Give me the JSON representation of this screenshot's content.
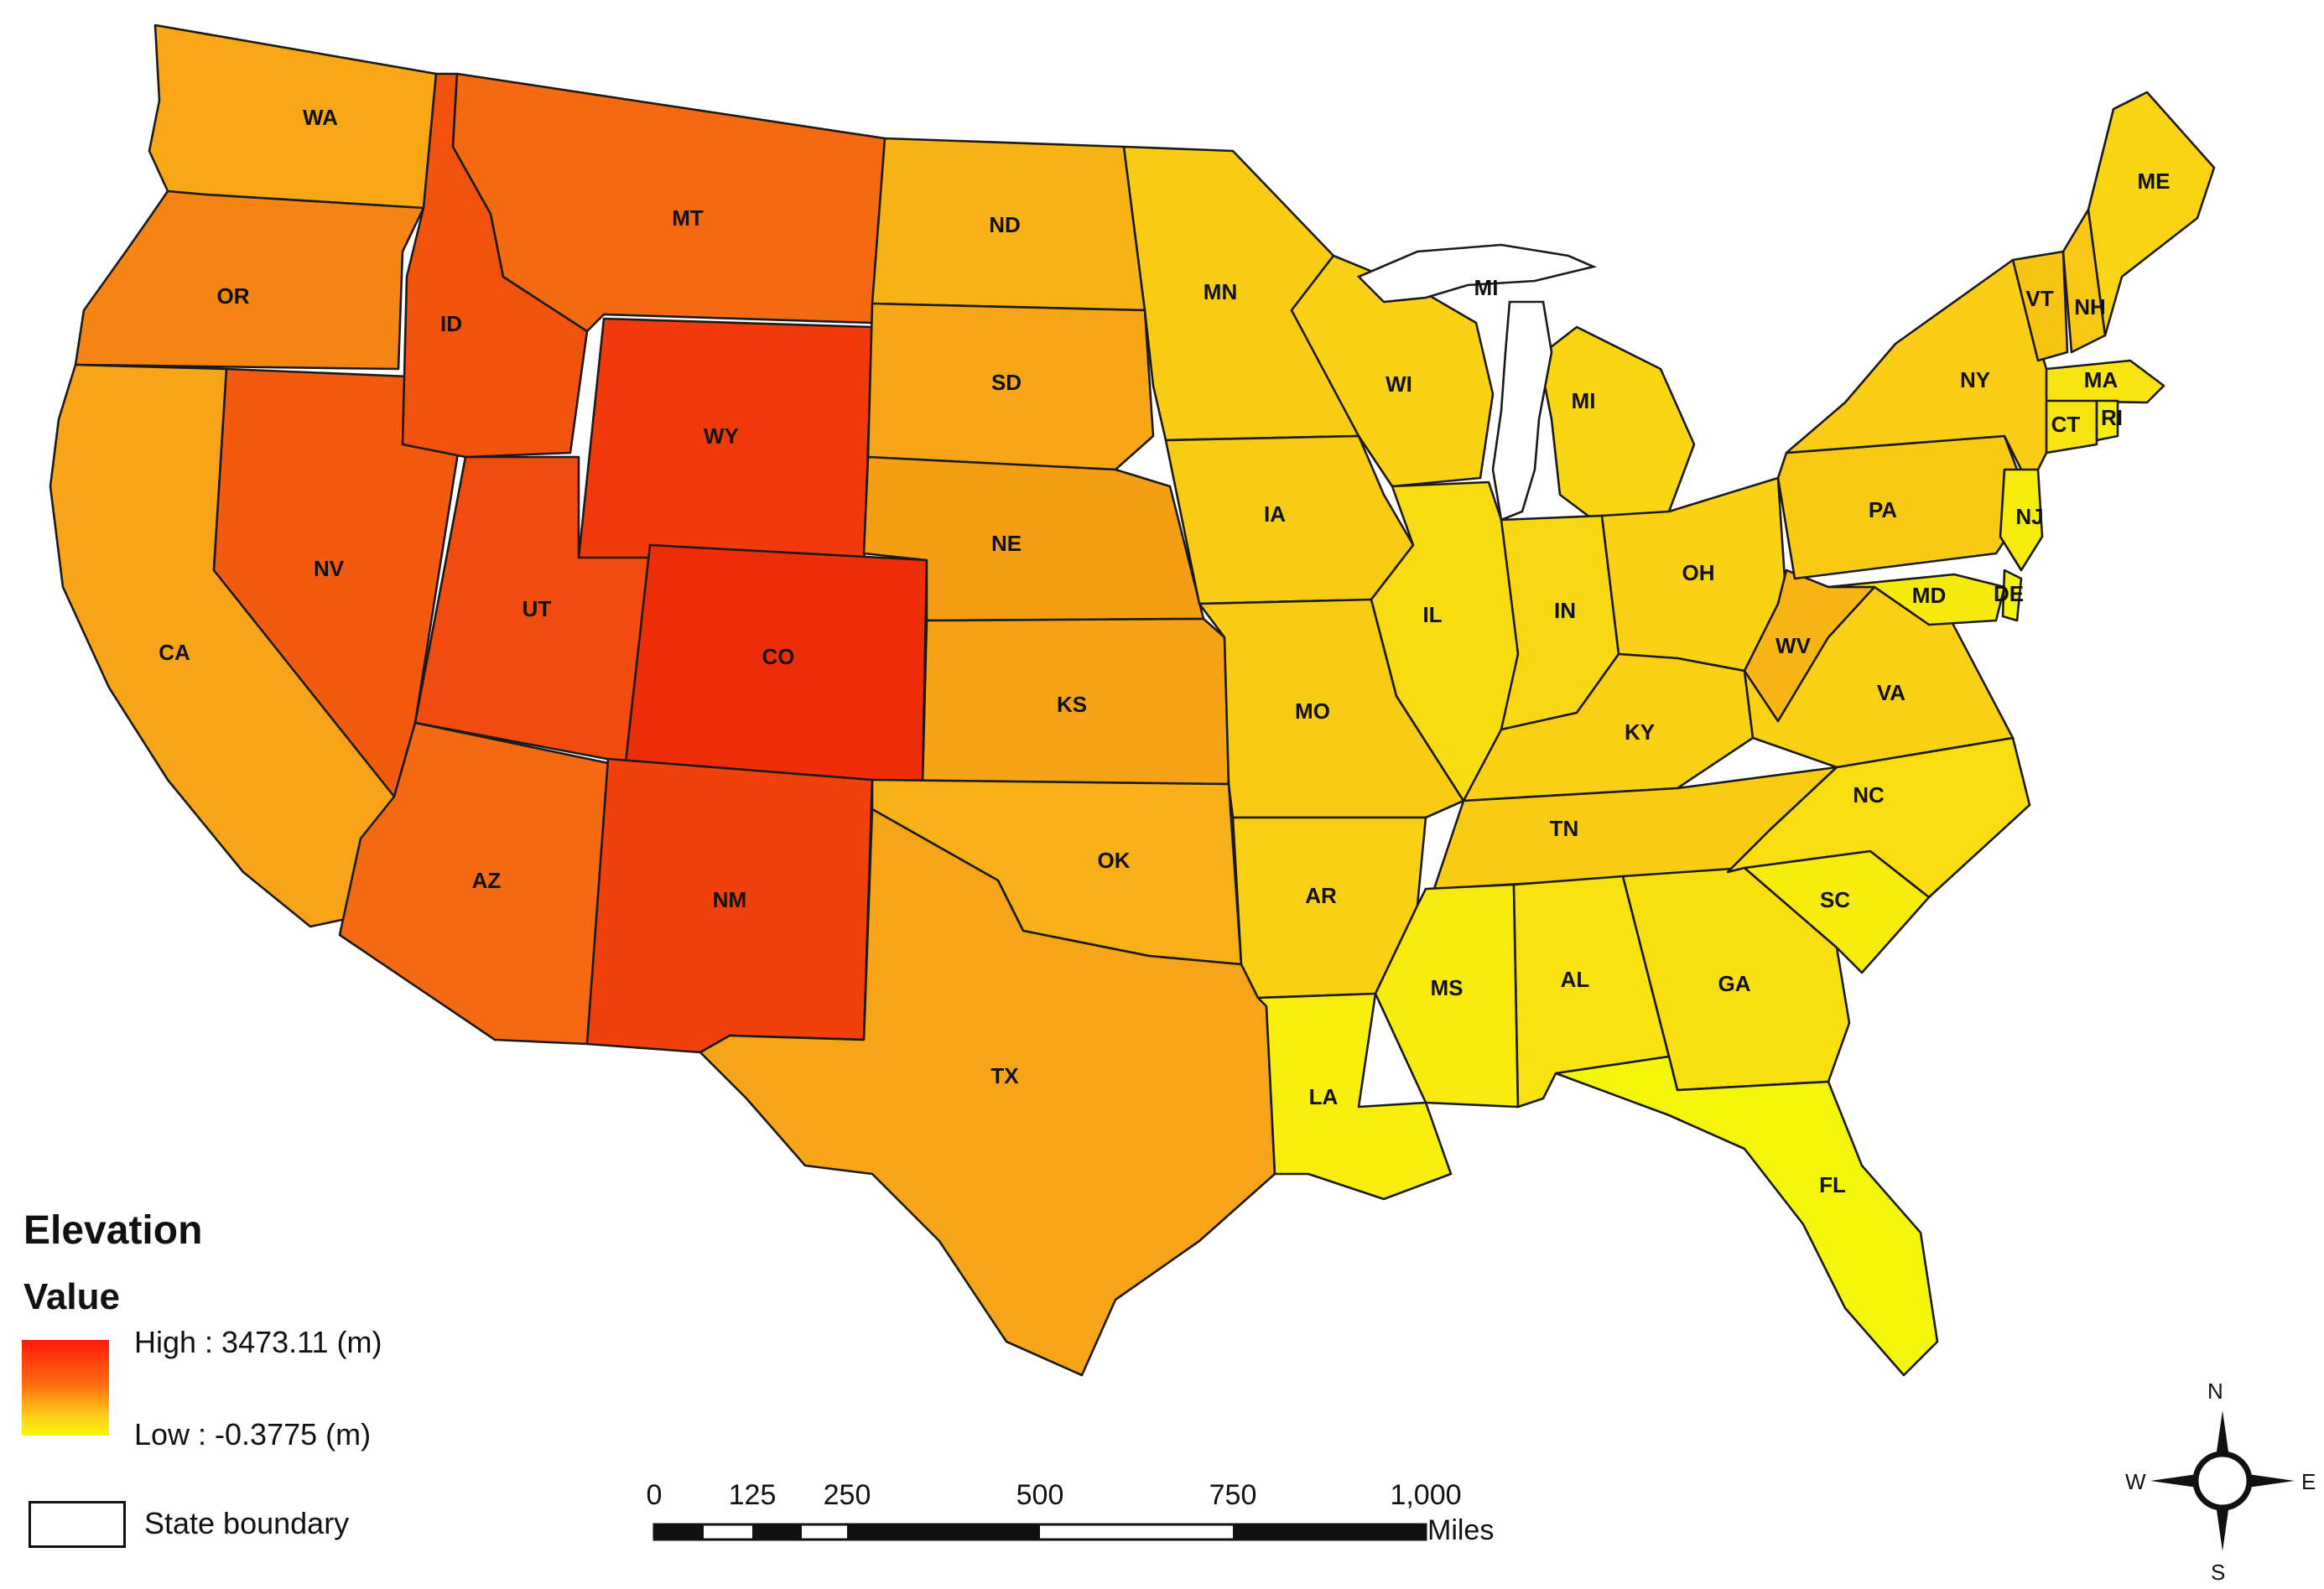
{
  "map": {
    "title": "Elevation",
    "legend": {
      "value_heading": "Value",
      "high_label": "High : 3473.11 (m)",
      "low_label": "Low : -0.3775 (m)",
      "high_color": "#ff1a0a",
      "low_color": "#f6f40a",
      "boundary_label": "State boundary"
    },
    "scale_bar": {
      "ticks": [
        "0",
        "125",
        "250",
        "500",
        "750",
        "1,000"
      ],
      "unit": "Miles"
    },
    "north_arrow": {
      "n": "N",
      "s": "S",
      "e": "E",
      "w": "W"
    },
    "states": [
      {
        "abbr": "WA",
        "color": "#f7a814"
      },
      {
        "abbr": "OR",
        "color": "#f48414"
      },
      {
        "abbr": "CA",
        "color": "#f7a418"
      },
      {
        "abbr": "NV",
        "color": "#f25a10"
      },
      {
        "abbr": "ID",
        "color": "#f1520e"
      },
      {
        "abbr": "MT",
        "color": "#f36a10"
      },
      {
        "abbr": "WY",
        "color": "#f03a0c"
      },
      {
        "abbr": "UT",
        "color": "#f14c0e"
      },
      {
        "abbr": "CO",
        "color": "#ee2c0a"
      },
      {
        "abbr": "AZ",
        "color": "#f36a12"
      },
      {
        "abbr": "NM",
        "color": "#f0400c"
      },
      {
        "abbr": "ND",
        "color": "#f7b216"
      },
      {
        "abbr": "SD",
        "color": "#f6a616"
      },
      {
        "abbr": "NE",
        "color": "#f59e14"
      },
      {
        "abbr": "KS",
        "color": "#f6a416"
      },
      {
        "abbr": "OK",
        "color": "#f7b018"
      },
      {
        "abbr": "TX",
        "color": "#f6a418"
      },
      {
        "abbr": "MN",
        "color": "#f9cc14"
      },
      {
        "abbr": "IA",
        "color": "#f9cc14"
      },
      {
        "abbr": "MO",
        "color": "#f9cc14"
      },
      {
        "abbr": "AR",
        "color": "#f9d014"
      },
      {
        "abbr": "LA",
        "color": "#f7ee0c"
      },
      {
        "abbr": "WI",
        "color": "#f9d214"
      },
      {
        "abbr": "MI",
        "color": "#f9d612"
      },
      {
        "abbr": "IL",
        "color": "#f8dc12"
      },
      {
        "abbr": "IN",
        "color": "#f8d812"
      },
      {
        "abbr": "OH",
        "color": "#f9d214"
      },
      {
        "abbr": "KY",
        "color": "#f9d014"
      },
      {
        "abbr": "TN",
        "color": "#f9cc14"
      },
      {
        "abbr": "MS",
        "color": "#f7ea0c"
      },
      {
        "abbr": "AL",
        "color": "#f8e210"
      },
      {
        "abbr": "GA",
        "color": "#f8e010"
      },
      {
        "abbr": "FL",
        "color": "#f4f60a"
      },
      {
        "abbr": "SC",
        "color": "#f6ec0c"
      },
      {
        "abbr": "NC",
        "color": "#f8de10"
      },
      {
        "abbr": "VA",
        "color": "#f9d014"
      },
      {
        "abbr": "WV",
        "color": "#f7b616"
      },
      {
        "abbr": "PA",
        "color": "#f9ca14"
      },
      {
        "abbr": "NY",
        "color": "#f9ce14"
      },
      {
        "abbr": "VT",
        "color": "#f8c414"
      },
      {
        "abbr": "NH",
        "color": "#f8c814"
      },
      {
        "abbr": "ME",
        "color": "#f8d412"
      },
      {
        "abbr": "MA",
        "color": "#f7e410"
      },
      {
        "abbr": "CT",
        "color": "#f7e410"
      },
      {
        "abbr": "RI",
        "color": "#f5ee0c"
      },
      {
        "abbr": "NJ",
        "color": "#f6ec0c"
      },
      {
        "abbr": "DE",
        "color": "#f4f40a"
      },
      {
        "abbr": "MD",
        "color": "#f6ea0c"
      }
    ],
    "mi_label_upper": "MI"
  }
}
